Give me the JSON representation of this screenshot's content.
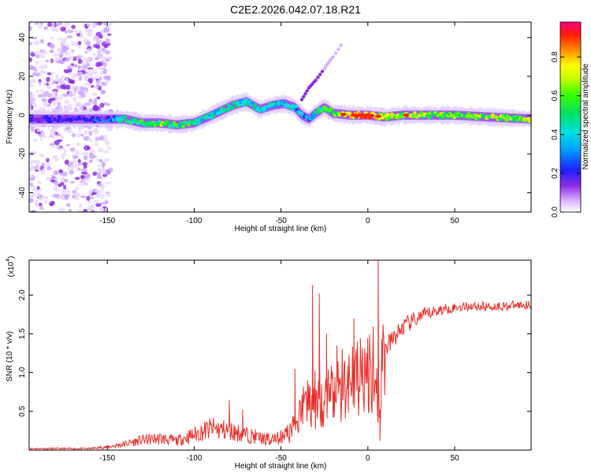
{
  "title": "C2E2.2026.042.07.18.R21",
  "chart_data": [
    {
      "type": "heatmap",
      "xlabel": "Height of straight line (km)",
      "ylabel": "Frequency (Hz)",
      "xlim": [
        -195,
        94
      ],
      "ylim": [
        -50,
        48
      ],
      "xticks": [
        -150,
        -100,
        -50,
        0,
        50
      ],
      "yticks": [
        -40,
        -20,
        0,
        20,
        40
      ],
      "colorbar": {
        "label": "Normalized spectral amplitude",
        "range": [
          0.0,
          0.98
        ],
        "ticks": [
          0.0,
          0.2,
          0.4,
          0.6,
          0.8
        ]
      },
      "ridge": {
        "x": [
          -195,
          -180,
          -165,
          -152,
          -140,
          -130,
          -120,
          -110,
          -100,
          -92,
          -85,
          -78,
          -70,
          -62,
          -55,
          -48,
          -42,
          -38,
          -34,
          -30,
          -25,
          -20,
          -10,
          0,
          10,
          20,
          30,
          50,
          70,
          94
        ],
        "y": [
          -2,
          -2,
          -2,
          -2,
          -2,
          -4,
          -4,
          -5,
          -4,
          -1,
          2,
          5,
          7,
          3,
          5,
          6,
          4,
          0,
          -2,
          1,
          4,
          1,
          0,
          0,
          -1,
          0,
          0,
          0,
          -1,
          -2
        ],
        "amplitude": [
          0.2,
          0.2,
          0.2,
          0.25,
          0.5,
          0.6,
          0.6,
          0.55,
          0.5,
          0.5,
          0.45,
          0.5,
          0.45,
          0.45,
          0.5,
          0.45,
          0.4,
          0.35,
          0.4,
          0.5,
          0.55,
          0.6,
          0.85,
          0.9,
          0.7,
          0.7,
          0.7,
          0.65,
          0.65,
          0.7
        ]
      },
      "noise_region_x": [
        -195,
        -148
      ],
      "branch": {
        "x": [
          -38,
          -34,
          -30,
          -25,
          -22,
          -20,
          -14
        ],
        "y": [
          8,
          14,
          18,
          24,
          28,
          30,
          38
        ]
      }
    },
    {
      "type": "line",
      "xlabel": "Height of straight line (km)",
      "ylabel": "SNR (10 * v/v)",
      "yscale_label": "(x10",
      "yscale_exp": "4",
      "xlim": [
        -195,
        94
      ],
      "ylim": [
        0,
        2.45
      ],
      "xticks": [
        -150,
        -100,
        -50,
        0,
        50
      ],
      "yticks": [
        0.5,
        1.0,
        1.5,
        2.0
      ],
      "ytick_labels": [
        "0.5",
        "1.0",
        "1.5",
        "2.0"
      ],
      "color": "#e8302a",
      "envelope": {
        "x": [
          -195,
          -160,
          -150,
          -140,
          -130,
          -120,
          -110,
          -100,
          -90,
          -80,
          -70,
          -60,
          -50,
          -45,
          -40,
          -35,
          -30,
          -25,
          -20,
          -15,
          -10,
          -5,
          0,
          3,
          5,
          7,
          8,
          10,
          15,
          20,
          25,
          30,
          40,
          50,
          60,
          70,
          80,
          94
        ],
        "y": [
          0.02,
          0.02,
          0.04,
          0.08,
          0.13,
          0.15,
          0.12,
          0.2,
          0.28,
          0.25,
          0.2,
          0.15,
          0.2,
          0.25,
          0.5,
          0.7,
          0.75,
          0.75,
          0.8,
          0.95,
          1.05,
          1.15,
          1.2,
          1.25,
          1.0,
          0.5,
          1.3,
          1.3,
          1.45,
          1.58,
          1.65,
          1.72,
          1.8,
          1.84,
          1.86,
          1.85,
          1.86,
          1.88
        ]
      },
      "spikes": [
        {
          "x": -80,
          "y": 0.65
        },
        {
          "x": -72,
          "y": 0.52
        },
        {
          "x": -42,
          "y": 1.05
        },
        {
          "x": -32,
          "y": 2.13
        },
        {
          "x": -28,
          "y": 2.02
        },
        {
          "x": -24,
          "y": 1.5
        },
        {
          "x": -18,
          "y": 1.35
        },
        {
          "x": -8,
          "y": 1.7
        },
        {
          "x": 6,
          "y": 2.45
        },
        {
          "x": 7,
          "y": 0.12
        }
      ]
    }
  ]
}
